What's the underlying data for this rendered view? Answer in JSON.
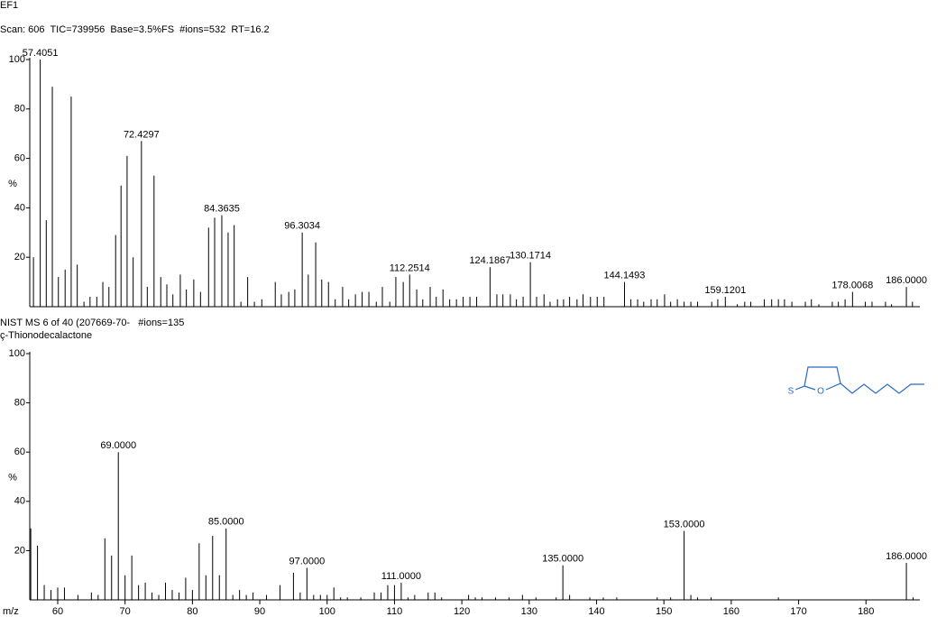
{
  "chart_data": [
    {
      "type": "bar",
      "title": "EF1",
      "subtitle": "Scan: 606  TIC=739956  Base=3.5%FS  #ions=532  RT=16.2",
      "y_label": "%",
      "color": "#000000",
      "xlim": [
        55.85,
        188.0
      ],
      "ylim": [
        0,
        100
      ],
      "yticks": [
        20,
        40,
        60,
        80,
        100
      ],
      "x": [
        56.4,
        57.4051,
        58.3,
        59.2,
        60.1,
        61.1,
        62.0,
        62.9,
        63.9,
        64.8,
        65.8,
        66.7,
        67.6,
        68.6,
        69.4,
        70.3,
        71.2,
        72.4297,
        73.3,
        74.3,
        75.3,
        76.2,
        77.1,
        78.2,
        79.1,
        80.2,
        81.2,
        82.4,
        83.3,
        84.3635,
        85.3,
        86.2,
        87.2,
        88.2,
        89.2,
        90.3,
        92.3,
        93.2,
        94.3,
        95.2,
        96.3034,
        97.2,
        98.3,
        99.2,
        100.2,
        101.2,
        102.3,
        103.2,
        104.2,
        105.2,
        106.2,
        107.3,
        108.2,
        109.3,
        110.2,
        111.3,
        112.2514,
        113.3,
        114.2,
        115.3,
        116.2,
        117.2,
        118.2,
        119.2,
        120.2,
        121.2,
        122.2,
        124.1867,
        125.2,
        126.1,
        127.2,
        128.1,
        129.1,
        130.1714,
        131.1,
        132.2,
        133.1,
        134.2,
        135.1,
        136.0,
        137.1,
        138.0,
        139.1,
        140.1,
        141.1,
        144.1493,
        145.1,
        146.1,
        147.0,
        148.1,
        149.0,
        150.1,
        151.0,
        152.0,
        153.0,
        154.0,
        155.0,
        157.1,
        158.0,
        159.1201,
        160.9,
        162.0,
        162.9,
        164.9,
        166.0,
        167.0,
        167.9,
        169.0,
        171.0,
        171.9,
        173.0,
        175.0,
        175.9,
        176.9,
        178.0068,
        179.9,
        180.9,
        182.9,
        183.8,
        186,
        186.9
      ],
      "values": [
        20,
        100,
        35,
        89,
        12,
        15,
        85,
        17,
        2,
        4,
        4,
        10,
        8,
        29,
        49,
        61,
        20,
        67,
        8,
        53,
        12,
        9,
        5,
        13,
        7,
        11,
        6,
        32,
        36,
        37,
        30,
        33,
        2,
        12,
        2,
        3,
        10,
        5,
        6,
        7,
        30,
        13,
        26,
        11,
        10,
        3,
        8,
        3,
        5,
        6,
        6,
        2,
        8,
        2,
        12,
        10,
        13,
        7,
        3,
        8,
        4,
        7,
        3,
        3,
        4,
        4,
        4,
        16,
        5,
        5,
        5,
        3,
        4,
        18,
        4,
        5,
        2,
        3,
        3,
        4,
        3,
        5,
        4,
        4,
        4,
        10,
        3,
        3,
        2,
        3,
        3,
        5,
        2,
        3,
        2,
        2,
        2,
        2,
        3,
        4,
        1,
        2,
        2,
        3,
        3,
        3,
        3,
        2,
        2,
        3,
        1,
        2,
        2,
        3,
        6,
        2,
        2,
        2,
        1,
        8,
        2
      ],
      "peak_labels": [
        null,
        "57.4051",
        null,
        null,
        null,
        null,
        null,
        null,
        null,
        null,
        null,
        null,
        null,
        null,
        null,
        null,
        null,
        "72.4297",
        null,
        null,
        null,
        null,
        null,
        null,
        null,
        null,
        null,
        null,
        null,
        "84.3635",
        null,
        null,
        null,
        null,
        null,
        null,
        null,
        null,
        null,
        null,
        "96.3034",
        null,
        null,
        null,
        null,
        null,
        null,
        null,
        null,
        null,
        null,
        null,
        null,
        null,
        null,
        null,
        "112.2514",
        null,
        null,
        null,
        null,
        null,
        null,
        null,
        null,
        null,
        null,
        "124.1867",
        null,
        null,
        null,
        null,
        null,
        "130.1714",
        null,
        null,
        null,
        null,
        null,
        null,
        null,
        null,
        null,
        null,
        null,
        "144.1493",
        null,
        null,
        null,
        null,
        null,
        null,
        null,
        null,
        null,
        null,
        null,
        null,
        null,
        "159.1201",
        null,
        null,
        null,
        null,
        null,
        null,
        null,
        null,
        null,
        null,
        null,
        null,
        null,
        null,
        "178.0068",
        null,
        null,
        null,
        null,
        "186.0000",
        null
      ]
    },
    {
      "type": "bar",
      "title": "NIST MS 6 of 40 (207669-70-   #ions=135",
      "subtitle": "ç-Thionodecalactone",
      "y_label": "%",
      "x_label": "m/z",
      "color": "#000000",
      "xlim": [
        55.85,
        188.0
      ],
      "ylim": [
        0,
        100
      ],
      "yticks": [
        20,
        40,
        60,
        80,
        100
      ],
      "xticks": [
        60,
        70,
        80,
        90,
        100,
        110,
        120,
        130,
        140,
        150,
        160,
        170,
        180
      ],
      "structure_atoms": [
        "S",
        "O"
      ],
      "structure_color": "#2a6bc4",
      "x": [
        56,
        57,
        58,
        59,
        60,
        61,
        63,
        65,
        66,
        67,
        68,
        69,
        70,
        71,
        72,
        73,
        74,
        75,
        76,
        77,
        78,
        79,
        80,
        81,
        82,
        83,
        84,
        85,
        86,
        87,
        88,
        89,
        91,
        93,
        95,
        96,
        97,
        98,
        99,
        100,
        101,
        102,
        103,
        105,
        107,
        108,
        109,
        110,
        111,
        112,
        113,
        115,
        116,
        117,
        121,
        122,
        123,
        125,
        127,
        129,
        131,
        134,
        135,
        136,
        139,
        141,
        143,
        149,
        151,
        153,
        154,
        155,
        157,
        167,
        186,
        187
      ],
      "values": [
        29,
        22,
        6,
        4,
        5,
        5,
        2,
        3,
        2,
        25,
        18,
        60,
        10,
        18,
        6,
        7,
        3,
        2,
        7,
        4,
        3,
        9,
        4,
        23,
        10,
        26,
        10,
        29,
        2,
        4,
        2,
        3,
        2,
        6,
        11,
        3,
        13,
        2,
        2,
        2,
        5,
        1,
        1,
        1,
        3,
        3,
        6,
        6,
        7,
        1,
        2,
        3,
        3,
        1,
        2,
        1,
        1,
        1,
        1,
        2,
        1,
        1,
        14,
        2,
        1,
        1,
        1,
        1,
        1,
        28,
        2,
        1,
        1,
        1,
        15,
        1
      ],
      "peak_labels": [
        null,
        null,
        null,
        null,
        null,
        null,
        null,
        null,
        null,
        null,
        null,
        "69.0000",
        null,
        null,
        null,
        null,
        null,
        null,
        null,
        null,
        null,
        null,
        null,
        null,
        null,
        null,
        null,
        "85.0000",
        null,
        null,
        null,
        null,
        null,
        null,
        null,
        null,
        "97.0000",
        null,
        null,
        null,
        null,
        null,
        null,
        null,
        null,
        null,
        null,
        null,
        "111.0000",
        null,
        null,
        null,
        null,
        null,
        null,
        null,
        null,
        null,
        null,
        null,
        null,
        null,
        "135.0000",
        null,
        null,
        null,
        null,
        null,
        null,
        "153.0000",
        null,
        null,
        null,
        null,
        "186.0000",
        null
      ]
    }
  ]
}
